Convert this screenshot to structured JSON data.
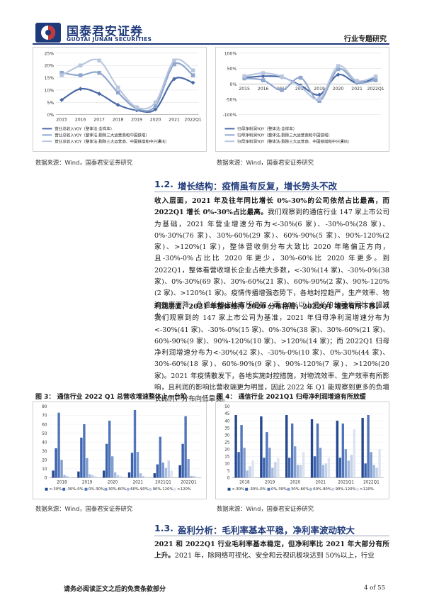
{
  "header": {
    "logo_cn": "国泰君安证券",
    "logo_en": "GUOTAI JUNAN SECURITIES",
    "report_type": "行业专题研究"
  },
  "sources": {
    "top_left": "数据来源：Wind，国泰君安证券研究",
    "top_right": "数据来源：Wind，国泰君安证券研究",
    "bottom_left": "数据来源：Wind，国泰君安证券研究",
    "bottom_right": "数据来源：Wind，国泰君安证券研究"
  },
  "section_1_2": {
    "number": "1.2.",
    "title": "增长结构：疫情虽有反复，增长势头不改"
  },
  "para1": {
    "bold": "收入层面，2021 年及往年同比增长 0%-30%的公司依然占比最高，而2022Q1 增长 0%-30%占比最高。",
    "text": "我们观察到的通信行业 147 家上市公司为基础，2021 年营业增速分布为<-30%(6 家)、-30%-0%(28 家)、0%-30%(76 家)、30%-60%(29 家)、60%-90%(5 家)、90%-120%(2 家)、>120%(1 家)，整体营收侧分布大致比 2020 年略偏正方向，且-30%-0%占比比 2020 年更少，30%-60%比 2020 年更多。到 2022Q1，整体看营收增长企业占绝大多数，<-30%(14 家)、-30%-0%(38 家)、0%-30%(69 家)、30%-60%(21 家)、60%-90%(2 家)、90%-120%(2 家)、>120%(1 家)。疫情传播增强态势下，各地封控趋严，生产效率、物流效率下降，负增长的占比有所增加，而 30%以上增长的公司也同比大幅减少。"
  },
  "para2": {
    "bold": "利润层面，2021 年整体维持 2020 分布格局，2022Q1 增速有所下移。",
    "text": "以我们观察到的 147 家上市公司为基准，2021 年归母净利润增速分布为<-30%(41 家)、-30%-0%(15 家)、0%-30%(38 家)、30%-60%(21 家)、60%-90%(9 家)、90%-120%(10 家)、>120%(14 家)；而 2022Q1 归母净利润增速分布为<-30%(42 家)、-30%-0%(10 家)、0%-30%(44 家)、30%-60%(18 家)、60%-90%(9 家)、90%-120%(7 家)、>120%(20 家)。2021 年疫情散发下，各地实施封控措施，对物流效率、生产效率有所影响，且利润的影响比营收端更为明显，因此 2022 年 Q1 能观察到更多的负增长比例，分布向低靠拢。"
  },
  "fig3": {
    "title": "图 3：  通信行业 2022 Q1 总营收增速整体上一台阶"
  },
  "fig4": {
    "title": "图 4：  通信行业 2021Q1 归母净利润增速有所放缓"
  },
  "section_1_3": {
    "number": "1.3.",
    "title": "盈利分析：毛利率基本平稳，净利率波动较大"
  },
  "para3": {
    "bold": "2021 和 2022Q1 行业毛利率基本稳定，但净利率比 2021 年大部分有所上升。",
    "text": "2021 年，除网络可视化、安全和云视讯板块达到 50%以上，行业"
  },
  "footer": {
    "note": "请务必阅读正文之后的免责条款部分",
    "page": "4 of 55"
  },
  "chart_data": [
    {
      "type": "line",
      "categories": [
        "2015",
        "2016",
        "2017",
        "2018",
        "2019",
        "2020",
        "2021",
        "2022Q1"
      ],
      "ylim": [
        0,
        25
      ],
      "yticks": [
        "0%",
        "5%",
        "10%",
        "15%",
        "20%",
        "25%"
      ],
      "series": [
        {
          "name": "营业总收入YOY（整体法:全样本）",
          "color": "#4a6aa5",
          "values": [
            6,
            10.5,
            8.5,
            4,
            1.8,
            2.2,
            14.5,
            13
          ]
        },
        {
          "name": "营业总收入YOY（整体法:剔除三大运营商和中国铁塔）",
          "color": "#8fa6cf",
          "values": [
            17,
            16,
            17,
            9,
            2.5,
            3.5,
            20.5,
            16
          ]
        },
        {
          "name": "营业总收入YOY（整体法:剔除三大运营商、中国铁塔和中兴通讯）",
          "color": "#b9c6df",
          "values": [
            16,
            20,
            22,
            11,
            3,
            5,
            22,
            18
          ]
        }
      ]
    },
    {
      "type": "line",
      "categories": [
        "2015",
        "2016",
        "2017",
        "2018",
        "2019",
        "2020",
        "2021",
        "2022Q1"
      ],
      "ylim": [
        -100,
        100
      ],
      "yticks": [
        "-100%",
        "-50%",
        "0%",
        "50%",
        "100%"
      ],
      "series": [
        {
          "name": "归母净利润YOY（整体法:全样本）",
          "color": "#4a6aa5",
          "values": [
            20,
            25,
            22,
            -5,
            -35,
            30,
            3,
            20
          ]
        },
        {
          "name": "归母净利润YOY（整体法:剔除三大运营商和中国铁塔）",
          "color": "#8fa6cf",
          "values": [
            18,
            12,
            -20,
            20,
            -55,
            48,
            5,
            12
          ]
        },
        {
          "name": "归母净利润YOY（整体法:剔除三大运营商、中国铁塔和中兴通讯）",
          "color": "#b9c6df",
          "values": [
            25,
            35,
            24,
            -10,
            -48,
            58,
            10,
            24
          ]
        }
      ]
    },
    {
      "type": "bar",
      "categories": [
        "2018",
        "2019",
        "2020",
        "2021",
        "2021Q1",
        "2022Q1"
      ],
      "ylim": [
        0,
        80
      ],
      "yticks": [
        "0",
        "10",
        "20",
        "30",
        "40",
        "50",
        "60",
        "70",
        "80"
      ],
      "series": [
        {
          "name": "<-30%",
          "color": "#24478f",
          "values": [
            8,
            7,
            8,
            6,
            5,
            14
          ]
        },
        {
          "name": "-30%-0%",
          "color": "#3a62ad",
          "values": [
            33,
            45,
            38,
            28,
            15,
            38
          ]
        },
        {
          "name": "0%-30%",
          "color": "#5174bb",
          "values": [
            73,
            60,
            64,
            76,
            46,
            69
          ]
        },
        {
          "name": "30%-60%",
          "color": "#7e9ccf",
          "values": [
            20,
            22,
            24,
            29,
            17,
            21
          ]
        },
        {
          "name": "60%-90%",
          "color": "#a4b9dd",
          "values": [
            3,
            4,
            6,
            5,
            11,
            2
          ]
        },
        {
          "name": "90%-120%",
          "color": "#c3d0e8",
          "values": [
            2,
            3,
            3,
            2,
            19,
            2
          ]
        },
        {
          "name": ">120%",
          "color": "#dde4f1",
          "values": [
            1,
            2,
            2,
            1,
            8,
            1
          ]
        }
      ]
    },
    {
      "type": "bar",
      "categories": [
        "2018",
        "2019",
        "2020",
        "2021",
        "2021Q1",
        "2022Q1"
      ],
      "ylim": [
        0,
        50
      ],
      "yticks": [
        "0",
        "5",
        "10",
        "15",
        "20",
        "25",
        "30",
        "35",
        "40",
        "45",
        "50"
      ],
      "series": [
        {
          "name": "<-30%",
          "color": "#24478f",
          "values": [
            44,
            43,
            44,
            41,
            40,
            42
          ]
        },
        {
          "name": "-30%-0%",
          "color": "#3a62ad",
          "values": [
            18,
            14,
            14,
            15,
            14,
            10
          ]
        },
        {
          "name": "0%-30%",
          "color": "#5174bb",
          "values": [
            37,
            32,
            38,
            38,
            38,
            44
          ]
        },
        {
          "name": "30%-60%",
          "color": "#7e9ccf",
          "values": [
            21,
            21,
            22,
            21,
            20,
            18
          ]
        },
        {
          "name": "60%-90%",
          "color": "#a4b9dd",
          "values": [
            5,
            7,
            9,
            9,
            12,
            9
          ]
        },
        {
          "name": "90%-120%",
          "color": "#c3d0e8",
          "values": [
            8,
            11,
            9,
            10,
            16,
            7
          ]
        },
        {
          "name": ">120%",
          "color": "#dde4f1",
          "values": [
            12,
            14,
            18,
            14,
            34,
            20
          ]
        }
      ]
    }
  ]
}
